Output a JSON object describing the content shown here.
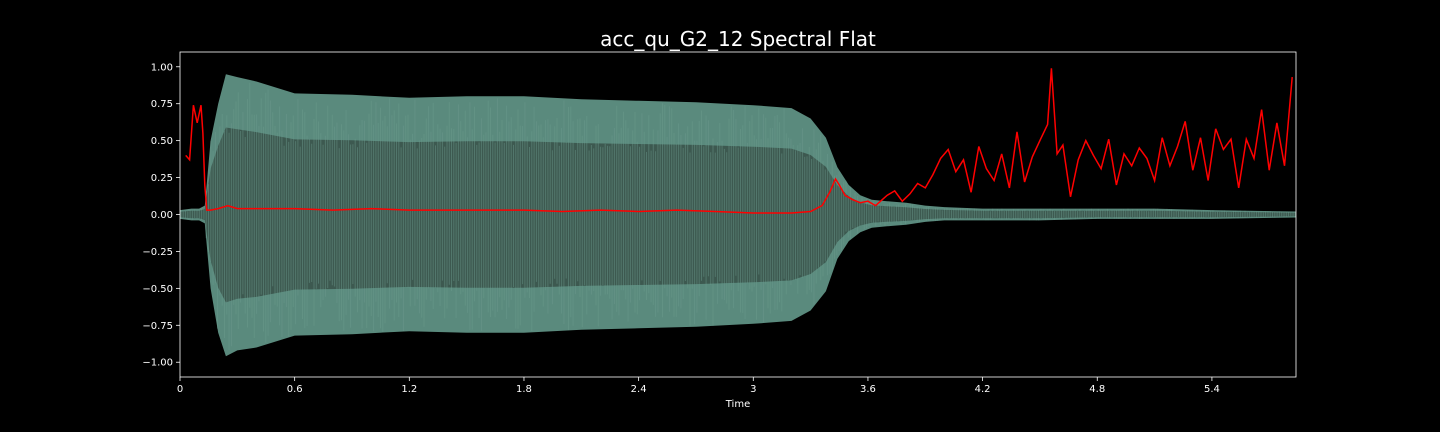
{
  "chart_data": {
    "type": "line",
    "title": "acc_qu_G2_12 Spectral Flat",
    "xlabel": "Time",
    "ylabel": "",
    "xlim": [
      0,
      5.84
    ],
    "ylim": [
      -1.1,
      1.1
    ],
    "x_ticks": [
      0,
      0.6,
      1.2,
      1.8,
      2.4,
      3,
      3.6,
      4.2,
      4.8,
      5.4
    ],
    "x_tick_labels": [
      "0",
      "0.6",
      "1.2",
      "1.8",
      "2.4",
      "3",
      "3.6",
      "4.2",
      "4.8",
      "5.4"
    ],
    "y_ticks": [
      1.0,
      0.75,
      0.5,
      0.25,
      0.0,
      -0.25,
      -0.5,
      -0.75,
      -1.0
    ],
    "y_tick_labels": [
      "1.00",
      "0.75",
      "0.50",
      "0.25",
      "0.00",
      "−0.25",
      "−0.50",
      "−0.75",
      "−1.00"
    ],
    "grid": false,
    "colors": {
      "background": "#000000",
      "axes_frame": "#ffffff",
      "waveform_outer": "#5a8a7d",
      "waveform_inner": "#3d5950",
      "waveform_spike": "#6c9c8f",
      "spectral_line": "#ff0000"
    },
    "series": [
      {
        "kind": "waveform-envelope",
        "x": [
          0,
          0.06,
          0.1,
          0.13,
          0.16,
          0.2,
          0.24,
          0.3,
          0.4,
          0.6,
          0.9,
          1.2,
          1.5,
          1.8,
          2.1,
          2.4,
          2.7,
          3.0,
          3.2,
          3.3,
          3.38,
          3.44,
          3.5,
          3.56,
          3.62,
          3.7,
          3.8,
          3.9,
          4.0,
          4.2,
          4.5,
          4.8,
          5.1,
          5.4,
          5.84
        ],
        "upper": [
          0.03,
          0.04,
          0.04,
          0.06,
          0.5,
          0.75,
          0.95,
          0.93,
          0.9,
          0.82,
          0.81,
          0.79,
          0.8,
          0.8,
          0.78,
          0.77,
          0.76,
          0.74,
          0.72,
          0.65,
          0.52,
          0.32,
          0.2,
          0.13,
          0.1,
          0.09,
          0.08,
          0.06,
          0.05,
          0.04,
          0.04,
          0.04,
          0.04,
          0.03,
          0.02
        ],
        "lower": [
          -0.03,
          -0.04,
          -0.04,
          -0.06,
          -0.5,
          -0.8,
          -0.96,
          -0.92,
          -0.9,
          -0.82,
          -0.81,
          -0.79,
          -0.8,
          -0.8,
          -0.78,
          -0.77,
          -0.76,
          -0.74,
          -0.72,
          -0.65,
          -0.52,
          -0.3,
          -0.18,
          -0.12,
          -0.09,
          -0.08,
          -0.07,
          -0.05,
          -0.04,
          -0.04,
          -0.04,
          -0.03,
          -0.03,
          -0.03,
          -0.02
        ]
      },
      {
        "kind": "spectral-flatness",
        "x": [
          0.03,
          0.05,
          0.07,
          0.09,
          0.11,
          0.12,
          0.13,
          0.14,
          0.16,
          0.2,
          0.25,
          0.3,
          0.4,
          0.6,
          0.8,
          1.0,
          1.2,
          1.4,
          1.6,
          1.8,
          2.0,
          2.2,
          2.4,
          2.6,
          2.8,
          3.0,
          3.2,
          3.3,
          3.36,
          3.4,
          3.43,
          3.45,
          3.48,
          3.52,
          3.56,
          3.6,
          3.64,
          3.7,
          3.74,
          3.78,
          3.82,
          3.86,
          3.9,
          3.94,
          3.98,
          4.02,
          4.06,
          4.1,
          4.14,
          4.18,
          4.22,
          4.26,
          4.3,
          4.34,
          4.38,
          4.42,
          4.46,
          4.5,
          4.54,
          4.56,
          4.59,
          4.62,
          4.66,
          4.7,
          4.74,
          4.78,
          4.82,
          4.86,
          4.9,
          4.94,
          4.98,
          5.02,
          5.06,
          5.1,
          5.14,
          5.18,
          5.22,
          5.26,
          5.3,
          5.34,
          5.38,
          5.42,
          5.46,
          5.5,
          5.54,
          5.58,
          5.62,
          5.66,
          5.7,
          5.74,
          5.78,
          5.82
        ],
        "y": [
          0.4,
          0.37,
          0.74,
          0.62,
          0.74,
          0.55,
          0.2,
          0.03,
          0.03,
          0.04,
          0.06,
          0.04,
          0.04,
          0.04,
          0.03,
          0.04,
          0.03,
          0.03,
          0.03,
          0.03,
          0.02,
          0.03,
          0.02,
          0.03,
          0.02,
          0.01,
          0.01,
          0.02,
          0.06,
          0.15,
          0.24,
          0.2,
          0.13,
          0.1,
          0.08,
          0.09,
          0.06,
          0.13,
          0.16,
          0.09,
          0.14,
          0.21,
          0.18,
          0.27,
          0.38,
          0.44,
          0.29,
          0.37,
          0.15,
          0.46,
          0.31,
          0.23,
          0.41,
          0.18,
          0.56,
          0.22,
          0.39,
          0.5,
          0.61,
          0.99,
          0.41,
          0.47,
          0.12,
          0.37,
          0.5,
          0.4,
          0.31,
          0.51,
          0.2,
          0.41,
          0.33,
          0.45,
          0.38,
          0.23,
          0.52,
          0.33,
          0.46,
          0.63,
          0.3,
          0.52,
          0.23,
          0.58,
          0.44,
          0.51,
          0.18,
          0.51,
          0.38,
          0.71,
          0.3,
          0.62,
          0.33,
          0.93
        ]
      }
    ]
  }
}
